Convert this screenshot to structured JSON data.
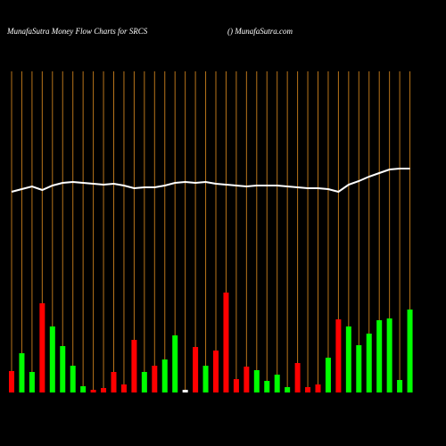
{
  "chart_data": {
    "type": "bar",
    "title": "MunafaSutra  Money Flow  Charts for SRCS",
    "subtitle": "() MunafaSutra.com",
    "categories": [
      null,
      null,
      null,
      null,
      null,
      null,
      null,
      null,
      null,
      null,
      null,
      null,
      null,
      null,
      null,
      null,
      null,
      null,
      null,
      null,
      null,
      null,
      null,
      null,
      null,
      null,
      null,
      null,
      null,
      null,
      null,
      null,
      null,
      null,
      null,
      null,
      null,
      null,
      null,
      null
    ],
    "values": [
      24,
      44,
      23,
      100,
      74,
      52,
      30,
      7,
      3,
      5,
      23,
      9,
      59,
      23,
      30,
      37,
      64,
      3,
      51,
      30,
      47,
      112,
      15,
      29,
      25,
      13,
      20,
      6,
      33,
      6,
      9,
      39,
      82,
      74,
      53,
      66,
      81,
      83,
      14,
      93
    ],
    "colors": [
      "#ff0000",
      "#00ff00",
      "#00ff00",
      "#ff0000",
      "#00ff00",
      "#00ff00",
      "#00ff00",
      "#00ff00",
      "#ff0000",
      "#ff0000",
      "#ff0000",
      "#ff0000",
      "#ff0000",
      "#00ff00",
      "#ff0000",
      "#00ff00",
      "#00ff00",
      "#ffffff",
      "#ff0000",
      "#00ff00",
      "#ff0000",
      "#ff0000",
      "#ff0000",
      "#ff0000",
      "#00ff00",
      "#00ff00",
      "#00ff00",
      "#00ff00",
      "#ff0000",
      "#ff0000",
      "#ff0000",
      "#00ff00",
      "#ff0000",
      "#00ff00",
      "#00ff00",
      "#00ff00",
      "#00ff00",
      "#00ff00",
      "#00ff00",
      "#00ff00"
    ],
    "line": {
      "color": "#ffffff",
      "values": [
        225,
        228,
        231,
        227,
        232,
        235,
        236,
        235,
        234,
        233,
        234,
        232,
        229,
        230,
        230,
        232,
        235,
        236,
        235,
        236,
        234,
        233,
        232,
        231,
        232,
        232,
        232,
        231,
        230,
        229,
        229,
        228,
        225,
        233,
        237,
        242,
        246,
        250,
        251,
        251
      ]
    },
    "ylim": [
      0,
      360
    ],
    "gridline_color": "#b8741a"
  }
}
